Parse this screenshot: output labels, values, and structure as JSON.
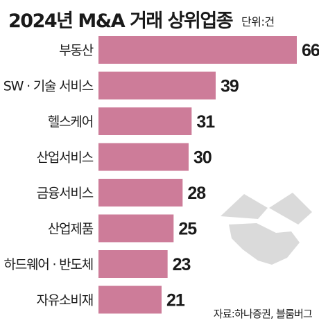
{
  "chart_data": {
    "type": "bar",
    "orientation": "horizontal",
    "title": "2024년 M&A 거래 상위업종",
    "unit_label": "단위:건",
    "source": "자료:하나증권, 블룸버그",
    "categories": [
      "부동산",
      "SW · 기술 서비스",
      "헬스케어",
      "산업서비스",
      "금융서비스",
      "산업제품",
      "하드웨어 · 반도체",
      "자유소비재"
    ],
    "values": [
      66,
      39,
      31,
      30,
      28,
      25,
      23,
      21
    ],
    "xlim": [
      0,
      66
    ],
    "grid": false,
    "legend": "none",
    "bar_color": "#cd7c99",
    "watermark_color": "#d6d6d6"
  }
}
